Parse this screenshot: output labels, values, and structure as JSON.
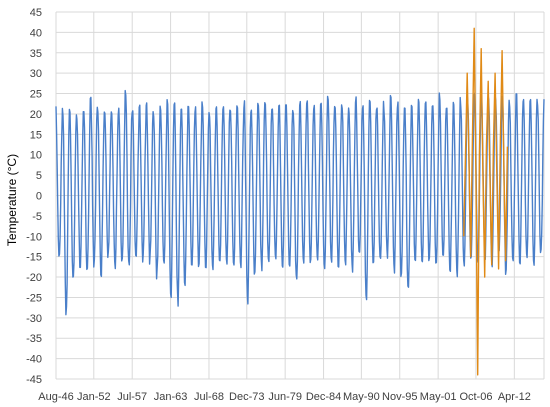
{
  "colors": {
    "series_1": "#4a7fc9",
    "series_2": "#e08a16",
    "gridline": "#d9d9d9",
    "axis": "#bfbfbf"
  },
  "chart_data": {
    "type": "line",
    "title": "",
    "xlabel": "",
    "ylabel": "Temperature (°C)",
    "ylim": [
      -45,
      45
    ],
    "ytick_step": 5,
    "grid": {
      "horizontal": true,
      "vertical": true
    },
    "legend": "none",
    "xlim": [
      "1946-08",
      "2016-07"
    ],
    "x_tick_labels": [
      "Aug-46",
      "Jan-52",
      "Jul-57",
      "Jan-63",
      "Jul-68",
      "Dec-73",
      "Jun-79",
      "Dec-84",
      "May-90",
      "Nov-95",
      "May-01",
      "Oct-06",
      "Apr-12"
    ],
    "x_tick_dates": [
      "1946-08",
      "1952-01",
      "1957-07",
      "1963-01",
      "1968-07",
      "1973-12",
      "1979-06",
      "1984-12",
      "1990-05",
      "1995-11",
      "2001-05",
      "2006-10",
      "2012-04"
    ],
    "series": [
      {
        "role": "series_1",
        "description_seasonal_cycle": true,
        "start": "1946-08",
        "end": "2016-07",
        "yearly_max": [
          21,
          21.5,
          22,
          21,
          22,
          24.5,
          21,
          22,
          21,
          22,
          26,
          21,
          22,
          23,
          21,
          22,
          23,
          23,
          22,
          23,
          22,
          23,
          21,
          22,
          23,
          22,
          23,
          23,
          22,
          24,
          23,
          22,
          23,
          23,
          22,
          23,
          24,
          22,
          23,
          25,
          23,
          23,
          22,
          24,
          23,
          24,
          22,
          23,
          25,
          23,
          22,
          23,
          24,
          23,
          23,
          25,
          22,
          23,
          24,
          25,
          26,
          24,
          25,
          24,
          24,
          23,
          25,
          24,
          25,
          24
        ],
        "yearly_min": [
          -16,
          -29.5,
          -22,
          -18,
          -19.5,
          -17,
          -19,
          -16,
          -18,
          -17,
          -19,
          -16,
          -17,
          -16,
          -20,
          -17,
          -25.5,
          -27,
          -23,
          -18,
          -17,
          -18,
          -19,
          -17,
          -16,
          -18,
          -17,
          -26,
          -21,
          -18,
          -17,
          -16,
          -18,
          -19,
          -22,
          -17,
          -18,
          -16,
          -19,
          -17,
          -18,
          -17,
          -19,
          -16,
          -25.5,
          -18,
          -17,
          -16,
          -19,
          -20,
          -24,
          -17,
          -18,
          -16,
          -18,
          -17,
          -19,
          -20,
          -18,
          -16,
          -17,
          -15,
          -18,
          -14,
          -19,
          -17,
          -18,
          -16,
          -17,
          -15
        ]
      },
      {
        "role": "series_2",
        "start": "2005-01",
        "end": "2011-06",
        "approx_values": [
          [
            "2005-01",
            -10
          ],
          [
            "2005-04",
            10
          ],
          [
            "2005-07",
            30
          ],
          [
            "2005-10",
            8
          ],
          [
            "2006-01",
            -15
          ],
          [
            "2006-04",
            15
          ],
          [
            "2006-07",
            41
          ],
          [
            "2006-10",
            5
          ],
          [
            "2007-01",
            -44
          ],
          [
            "2007-04",
            10
          ],
          [
            "2007-07",
            36
          ],
          [
            "2007-10",
            5
          ],
          [
            "2008-01",
            -20
          ],
          [
            "2008-04",
            12
          ],
          [
            "2008-07",
            28
          ],
          [
            "2008-10",
            5
          ],
          [
            "2009-01",
            -17
          ],
          [
            "2009-04",
            12
          ],
          [
            "2009-07",
            30
          ],
          [
            "2009-10",
            4
          ],
          [
            "2010-01",
            -18
          ],
          [
            "2010-04",
            14
          ],
          [
            "2010-07",
            35.5
          ],
          [
            "2010-10",
            6
          ],
          [
            "2011-01",
            -16
          ],
          [
            "2011-04",
            12
          ]
        ]
      }
    ]
  }
}
